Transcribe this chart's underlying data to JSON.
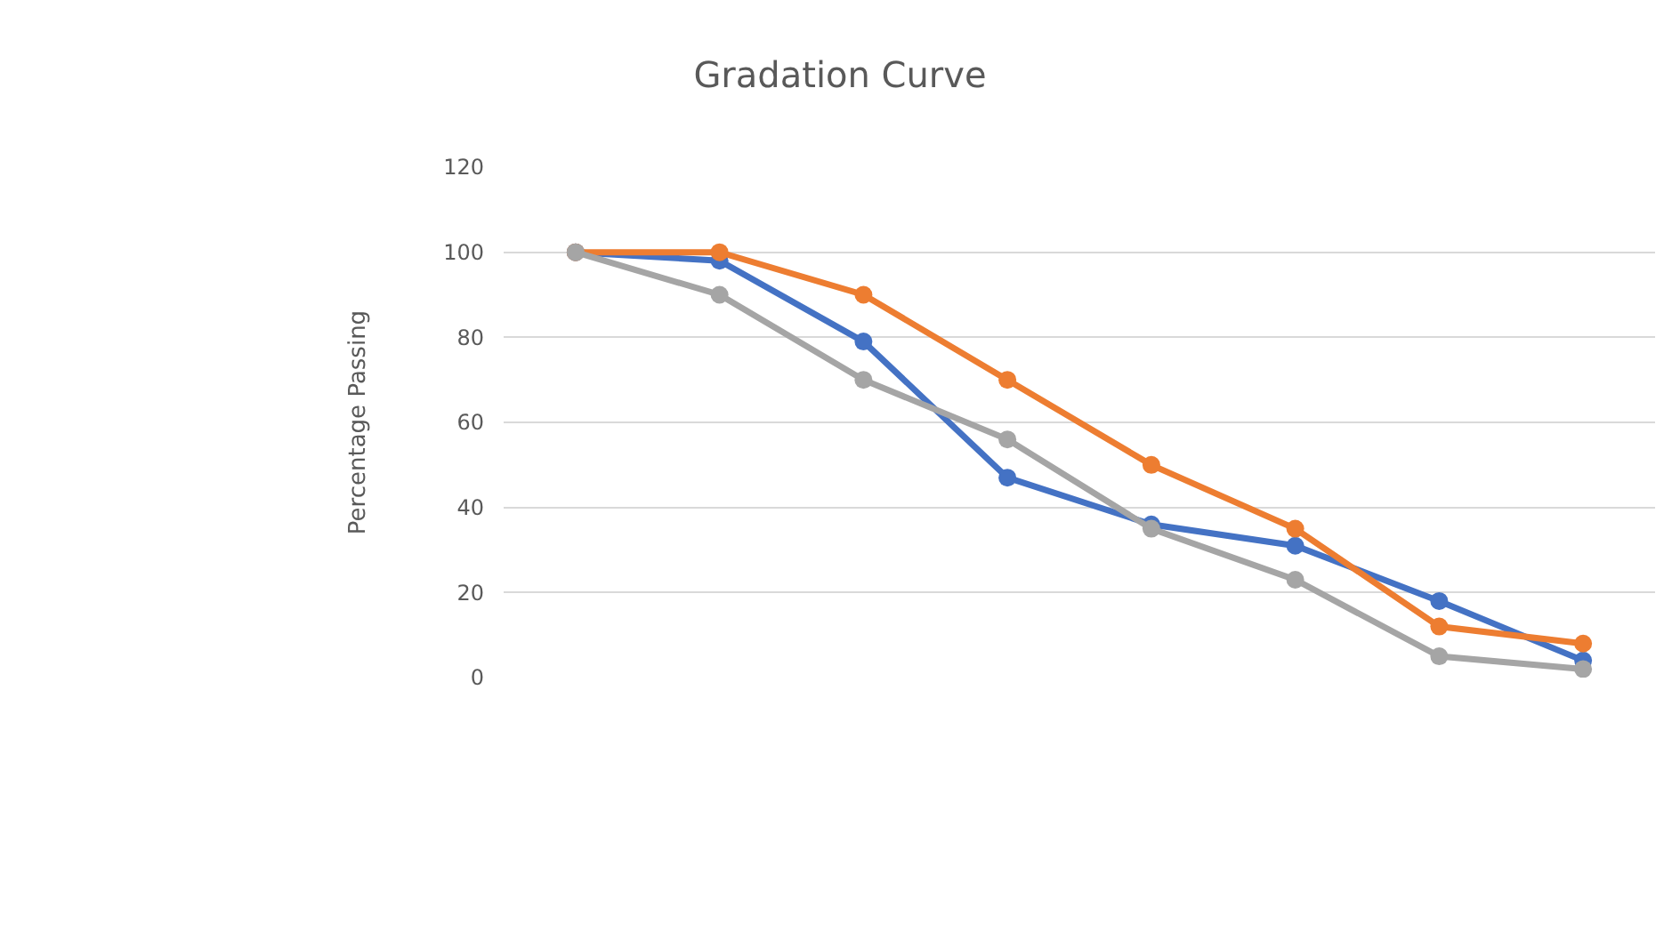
{
  "chart_data": {
    "type": "line",
    "title": "Gradation Curve",
    "ylabel": "Percentage Passing",
    "categories": [
      null,
      null,
      null,
      null,
      null,
      null,
      null,
      null
    ],
    "series": [
      {
        "color": "#4472c4",
        "values": [
          100,
          98,
          79,
          47,
          36,
          31,
          18,
          4
        ]
      },
      {
        "color": "#ed7d31",
        "values": [
          100,
          100,
          90,
          70,
          50,
          35,
          12,
          8
        ]
      },
      {
        "color": "#a5a5a5",
        "values": [
          100,
          90,
          70,
          56,
          35,
          23,
          5,
          2
        ]
      }
    ],
    "ylim": [
      0,
      120
    ],
    "yticks": [
      0,
      20,
      40,
      60,
      80,
      100,
      120
    ],
    "grid": "y",
    "marker": "circle",
    "line_style": "solid"
  }
}
